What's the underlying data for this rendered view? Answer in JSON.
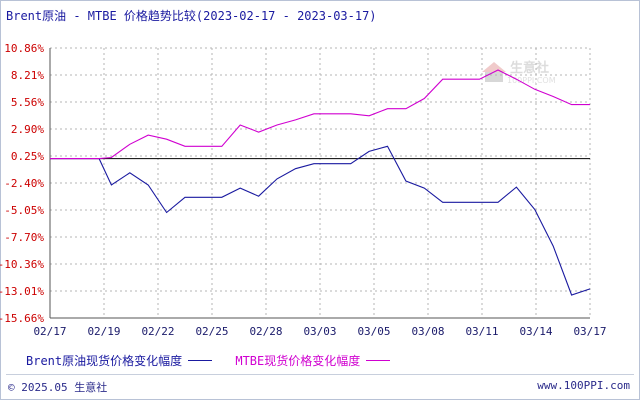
{
  "title": "Brent原油 - MTBE 价格趋势比较(2023-02-17 - 2023-03-17)",
  "watermark": {
    "brand": "生意社",
    "url": "100PPI.COM"
  },
  "footer": {
    "copyright": "© 2025.05 生意社",
    "website": "www.100PPI.com"
  },
  "colors": {
    "brent": "#1a1aa0",
    "mtbe": "#d000d0",
    "y_labels": "#cc0000",
    "grid": "#b4b4b4",
    "axis": "#000000"
  },
  "chart_data": {
    "type": "line",
    "title": "Brent原油 - MTBE 价格趋势比较(2023-02-17 - 2023-03-17)",
    "ylabel": "",
    "xlabel": "",
    "unit": "%",
    "ylim": [
      -15.66,
      10.86
    ],
    "yticks": [
      10.86,
      8.21,
      5.56,
      2.9,
      0.25,
      -2.4,
      -5.05,
      -7.7,
      -10.36,
      -13.01,
      -15.66
    ],
    "ytick_labels": [
      "10.86%",
      "8.21%",
      "5.56%",
      "2.90%",
      "0.25%",
      "-2.40%",
      "-5.05%",
      "-7.70%",
      "-10.36%",
      "-13.01%",
      "-15.66%"
    ],
    "xtick_labels": [
      "02/17",
      "02/19",
      "02/22",
      "02/25",
      "02/28",
      "03/03",
      "03/05",
      "03/08",
      "03/11",
      "03/14",
      "03/17"
    ],
    "grid": true,
    "legend_position": "bottom",
    "series": [
      {
        "name": "Brent原油现货价格变化幅度",
        "color": "#1a1aa0",
        "points": [
          [
            0,
            0.0
          ],
          [
            4,
            0.0
          ],
          [
            5,
            -2.6
          ],
          [
            6.5,
            -1.4
          ],
          [
            8,
            -2.6
          ],
          [
            9.5,
            -5.3
          ],
          [
            11,
            -3.8
          ],
          [
            12.5,
            -3.8
          ],
          [
            14,
            -3.8
          ],
          [
            15.5,
            -2.9
          ],
          [
            17,
            -3.7
          ],
          [
            18.5,
            -2.0
          ],
          [
            20,
            -1.0
          ],
          [
            21.5,
            -0.5
          ],
          [
            23,
            -0.5
          ],
          [
            24.5,
            -0.5
          ],
          [
            26,
            0.7
          ],
          [
            27.5,
            1.2
          ],
          [
            29,
            -2.2
          ],
          [
            30.5,
            -2.9
          ],
          [
            32,
            -4.3
          ],
          [
            33.5,
            -4.3
          ],
          [
            35,
            -4.3
          ],
          [
            36.5,
            -4.3
          ],
          [
            38,
            -2.8
          ],
          [
            39.5,
            -5.0
          ],
          [
            41,
            -8.6
          ],
          [
            42.5,
            -13.4
          ],
          [
            44,
            -12.8
          ]
        ]
      },
      {
        "name": "MTBE现货价格变化幅度",
        "color": "#d000d0",
        "points": [
          [
            0,
            0.0
          ],
          [
            4,
            0.0
          ],
          [
            5,
            0.1
          ],
          [
            6.5,
            1.4
          ],
          [
            8,
            2.3
          ],
          [
            9.5,
            1.9
          ],
          [
            11,
            1.2
          ],
          [
            12.5,
            1.2
          ],
          [
            14,
            1.2
          ],
          [
            15.5,
            3.3
          ],
          [
            17,
            2.6
          ],
          [
            18.5,
            3.3
          ],
          [
            20,
            3.8
          ],
          [
            21.5,
            4.4
          ],
          [
            23,
            4.4
          ],
          [
            24.5,
            4.4
          ],
          [
            26,
            4.2
          ],
          [
            27.5,
            4.9
          ],
          [
            29,
            4.9
          ],
          [
            30.5,
            5.9
          ],
          [
            32,
            7.8
          ],
          [
            33.5,
            7.8
          ],
          [
            35,
            7.8
          ],
          [
            36.5,
            8.7
          ],
          [
            38,
            7.8
          ],
          [
            39.5,
            6.8
          ],
          [
            41,
            6.1
          ],
          [
            42.5,
            5.3
          ],
          [
            44,
            5.3
          ]
        ]
      }
    ]
  }
}
